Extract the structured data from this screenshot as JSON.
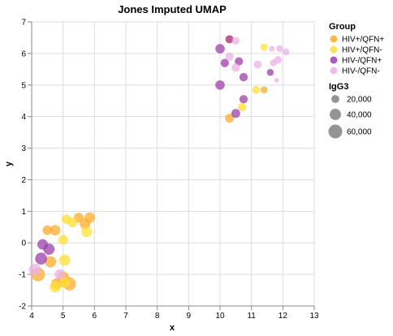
{
  "chart_data": {
    "type": "scatter",
    "title": "Jones Imputed UMAP",
    "xlabel": "x",
    "ylabel": "y",
    "xlim": [
      4,
      13
    ],
    "ylim": [
      -2,
      7
    ],
    "x_ticks": [
      "4",
      "5",
      "6",
      "7",
      "8",
      "9",
      "10",
      "11",
      "12",
      "13"
    ],
    "y_ticks": [
      "-2",
      "-1",
      "0",
      "1",
      "2",
      "3",
      "4",
      "5",
      "6",
      "7"
    ],
    "grid": true,
    "legend_color": {
      "title": "Group",
      "placement": "top-right",
      "entries": [
        {
          "label": "HIV+/QFN+",
          "color": "#ffab2e"
        },
        {
          "label": "HIV+/QFN-",
          "color": "#ffe033"
        },
        {
          "label": "HIV-/QFN+",
          "color": "#9c3fa9"
        },
        {
          "label": "HIV-/QFN-",
          "color": "#ebb2e6"
        }
      ]
    },
    "legend_size": {
      "title": "IgG3",
      "entries": [
        {
          "label": "20,000",
          "value": 20000
        },
        {
          "label": "40,000",
          "value": 40000
        },
        {
          "label": "60,000",
          "value": 60000
        }
      ]
    },
    "series": [
      {
        "name": "HIV+/QFN+",
        "points": [
          {
            "x": 4.5,
            "y": 0.4,
            "size": 30000
          },
          {
            "x": 4.75,
            "y": 0.4,
            "size": 35000
          },
          {
            "x": 4.6,
            "y": -0.6,
            "size": 40000
          },
          {
            "x": 4.2,
            "y": -1.0,
            "size": 60000
          },
          {
            "x": 4.8,
            "y": -1.3,
            "size": 40000
          },
          {
            "x": 5.0,
            "y": -1.1,
            "size": 45000
          },
          {
            "x": 5.2,
            "y": -1.3,
            "size": 55000
          },
          {
            "x": 5.5,
            "y": 0.8,
            "size": 30000
          },
          {
            "x": 5.7,
            "y": 0.6,
            "size": 35000
          },
          {
            "x": 5.85,
            "y": 0.8,
            "size": 35000
          },
          {
            "x": 10.3,
            "y": 3.95,
            "size": 25000
          },
          {
            "x": 10.3,
            "y": 6.45,
            "size": 22000
          },
          {
            "x": 11.4,
            "y": 4.85,
            "size": 16000
          }
        ]
      },
      {
        "name": "HIV+/QFN-",
        "points": [
          {
            "x": 5.0,
            "y": 0.1,
            "size": 30000
          },
          {
            "x": 5.1,
            "y": 0.75,
            "size": 28000
          },
          {
            "x": 5.3,
            "y": 0.65,
            "size": 32000
          },
          {
            "x": 5.05,
            "y": -0.55,
            "size": 40000
          },
          {
            "x": 4.75,
            "y": -1.4,
            "size": 38000
          },
          {
            "x": 5.05,
            "y": -1.25,
            "size": 35000
          },
          {
            "x": 5.75,
            "y": 0.35,
            "size": 35000
          },
          {
            "x": 10.7,
            "y": 4.3,
            "size": 22000
          },
          {
            "x": 11.15,
            "y": 4.85,
            "size": 20000
          },
          {
            "x": 11.4,
            "y": 6.2,
            "size": 16000
          }
        ]
      },
      {
        "name": "HIV-/QFN+",
        "points": [
          {
            "x": 4.35,
            "y": -0.05,
            "size": 35000
          },
          {
            "x": 4.3,
            "y": -0.5,
            "size": 45000
          },
          {
            "x": 4.55,
            "y": -0.2,
            "size": 40000
          },
          {
            "x": 10.0,
            "y": 6.15,
            "size": 28000
          },
          {
            "x": 10.15,
            "y": 5.7,
            "size": 22000
          },
          {
            "x": 10.3,
            "y": 6.45,
            "size": 20000
          },
          {
            "x": 10.6,
            "y": 5.75,
            "size": 22000
          },
          {
            "x": 10.75,
            "y": 5.25,
            "size": 22000
          },
          {
            "x": 10.0,
            "y": 5.0,
            "size": 28000
          },
          {
            "x": 10.75,
            "y": 4.55,
            "size": 22000
          },
          {
            "x": 10.5,
            "y": 4.1,
            "size": 25000
          },
          {
            "x": 11.6,
            "y": 5.4,
            "size": 15000
          }
        ]
      },
      {
        "name": "HIV-/QFN-",
        "points": [
          {
            "x": 4.1,
            "y": -0.85,
            "size": 45000
          },
          {
            "x": 4.9,
            "y": -1.0,
            "size": 35000
          },
          {
            "x": 10.3,
            "y": 5.9,
            "size": 22000
          },
          {
            "x": 10.5,
            "y": 6.4,
            "size": 18000
          },
          {
            "x": 10.5,
            "y": 5.55,
            "size": 22000
          },
          {
            "x": 11.2,
            "y": 5.65,
            "size": 20000
          },
          {
            "x": 11.65,
            "y": 6.15,
            "size": 10000
          },
          {
            "x": 11.9,
            "y": 6.15,
            "size": 15000
          },
          {
            "x": 12.1,
            "y": 6.05,
            "size": 15000
          },
          {
            "x": 11.7,
            "y": 5.7,
            "size": 15000
          },
          {
            "x": 11.85,
            "y": 5.8,
            "size": 18000
          },
          {
            "x": 11.8,
            "y": 5.15,
            "size": 6000
          }
        ]
      }
    ]
  }
}
